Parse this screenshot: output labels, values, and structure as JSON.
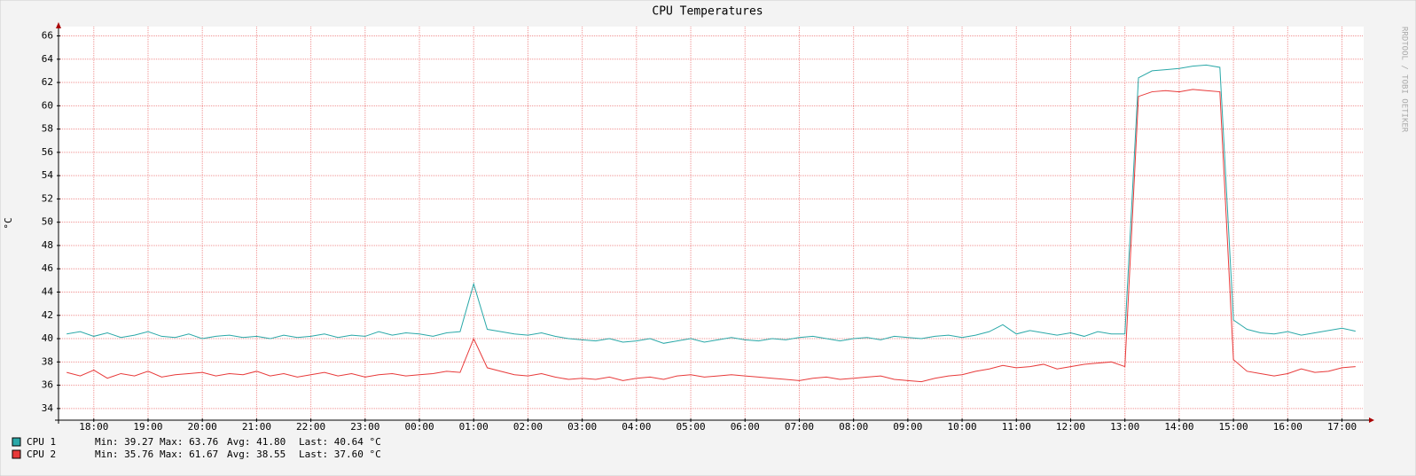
{
  "chart_data": {
    "type": "line",
    "title": "CPU Temperatures",
    "y_label": "°C",
    "watermark": "RRDTOOL / TOBI OETIKER",
    "x": [
      17.5,
      17.75,
      18,
      18.25,
      18.5,
      18.75,
      19,
      19.25,
      19.5,
      19.75,
      20,
      20.25,
      20.5,
      20.75,
      21,
      21.25,
      21.5,
      21.75,
      22,
      22.25,
      22.5,
      22.75,
      23,
      23.25,
      23.5,
      23.75,
      24,
      24.25,
      24.5,
      24.75,
      25,
      25.25,
      25.5,
      25.75,
      26,
      26.25,
      26.5,
      26.75,
      27,
      27.25,
      27.5,
      27.75,
      28,
      28.25,
      28.5,
      28.75,
      29,
      29.25,
      29.5,
      29.75,
      30,
      30.25,
      30.5,
      30.75,
      31,
      31.25,
      31.5,
      31.75,
      32,
      32.25,
      32.5,
      32.75,
      33,
      33.25,
      33.5,
      33.75,
      34,
      34.25,
      34.5,
      34.75,
      35,
      35.25,
      35.5,
      35.75,
      36,
      36.25,
      36.5,
      36.75,
      37,
      37.25,
      37.5,
      37.75,
      38,
      38.25,
      38.5,
      38.75,
      39,
      39.25,
      39.5,
      39.75,
      40,
      40.25,
      40.5,
      40.75,
      41,
      41.25
    ],
    "series": [
      {
        "name": "CPU 1",
        "color": "#2aa8a8",
        "stats": [
          "Min: 39.27",
          "Max: 63.76",
          "Avg: 41.80",
          "Last: 40.64 °C"
        ],
        "values": [
          40.4,
          40.6,
          40.2,
          40.5,
          40.1,
          40.3,
          40.6,
          40.2,
          40.1,
          40.4,
          40.0,
          40.2,
          40.3,
          40.1,
          40.2,
          40.0,
          40.3,
          40.1,
          40.2,
          40.4,
          40.1,
          40.3,
          40.2,
          40.6,
          40.3,
          40.5,
          40.4,
          40.2,
          40.5,
          40.6,
          44.7,
          40.8,
          40.6,
          40.4,
          40.3,
          40.5,
          40.2,
          40.0,
          39.9,
          39.8,
          40.0,
          39.7,
          39.8,
          40.0,
          39.6,
          39.8,
          40.0,
          39.7,
          39.9,
          40.1,
          39.9,
          39.8,
          40.0,
          39.9,
          40.1,
          40.2,
          40.0,
          39.8,
          40.0,
          40.1,
          39.9,
          40.2,
          40.1,
          40.0,
          40.2,
          40.3,
          40.1,
          40.3,
          40.6,
          41.2,
          40.4,
          40.7,
          40.5,
          40.3,
          40.5,
          40.2,
          40.6,
          40.4,
          40.4,
          62.4,
          63.0,
          63.1,
          63.2,
          63.4,
          63.5,
          63.3,
          41.6,
          40.8,
          40.5,
          40.4,
          40.6,
          40.3,
          40.5,
          40.7,
          40.9,
          40.64
        ]
      },
      {
        "name": "CPU 2",
        "color": "#e83a3a",
        "stats": [
          "Min: 35.76",
          "Max: 61.67",
          "Avg: 38.55",
          "Last: 37.60 °C"
        ],
        "values": [
          37.1,
          36.8,
          37.3,
          36.6,
          37.0,
          36.8,
          37.2,
          36.7,
          36.9,
          37.0,
          37.1,
          36.8,
          37.0,
          36.9,
          37.2,
          36.8,
          37.0,
          36.7,
          36.9,
          37.1,
          36.8,
          37.0,
          36.7,
          36.9,
          37.0,
          36.8,
          36.9,
          37.0,
          37.2,
          37.1,
          40.0,
          37.5,
          37.2,
          36.9,
          36.8,
          37.0,
          36.7,
          36.5,
          36.6,
          36.5,
          36.7,
          36.4,
          36.6,
          36.7,
          36.5,
          36.8,
          36.9,
          36.7,
          36.8,
          36.9,
          36.8,
          36.7,
          36.6,
          36.5,
          36.4,
          36.6,
          36.7,
          36.5,
          36.6,
          36.7,
          36.8,
          36.5,
          36.4,
          36.3,
          36.6,
          36.8,
          36.9,
          37.2,
          37.4,
          37.7,
          37.5,
          37.6,
          37.8,
          37.4,
          37.6,
          37.8,
          37.9,
          38.0,
          37.6,
          60.8,
          61.2,
          61.3,
          61.2,
          61.4,
          61.3,
          61.2,
          38.2,
          37.2,
          37.0,
          36.8,
          37.0,
          37.4,
          37.1,
          37.2,
          37.5,
          37.6
        ]
      }
    ],
    "xlim": [
      17.35,
      41.4
    ],
    "xticks": [
      {
        "value": 18,
        "label": "18:00"
      },
      {
        "value": 19,
        "label": "19:00"
      },
      {
        "value": 20,
        "label": "20:00"
      },
      {
        "value": 21,
        "label": "21:00"
      },
      {
        "value": 22,
        "label": "22:00"
      },
      {
        "value": 23,
        "label": "23:00"
      },
      {
        "value": 24,
        "label": "00:00"
      },
      {
        "value": 25,
        "label": "01:00"
      },
      {
        "value": 26,
        "label": "02:00"
      },
      {
        "value": 27,
        "label": "03:00"
      },
      {
        "value": 28,
        "label": "04:00"
      },
      {
        "value": 29,
        "label": "05:00"
      },
      {
        "value": 30,
        "label": "06:00"
      },
      {
        "value": 31,
        "label": "07:00"
      },
      {
        "value": 32,
        "label": "08:00"
      },
      {
        "value": 33,
        "label": "09:00"
      },
      {
        "value": 34,
        "label": "10:00"
      },
      {
        "value": 35,
        "label": "11:00"
      },
      {
        "value": 36,
        "label": "12:00"
      },
      {
        "value": 37,
        "label": "13:00"
      },
      {
        "value": 38,
        "label": "14:00"
      },
      {
        "value": 39,
        "label": "15:00"
      },
      {
        "value": 40,
        "label": "16:00"
      },
      {
        "value": 41,
        "label": "17:00"
      }
    ],
    "ylim": [
      33,
      66.8
    ],
    "yticks": [
      34,
      36,
      38,
      40,
      42,
      44,
      46,
      48,
      50,
      52,
      54,
      56,
      58,
      60,
      62,
      64,
      66
    ],
    "grid": true
  }
}
